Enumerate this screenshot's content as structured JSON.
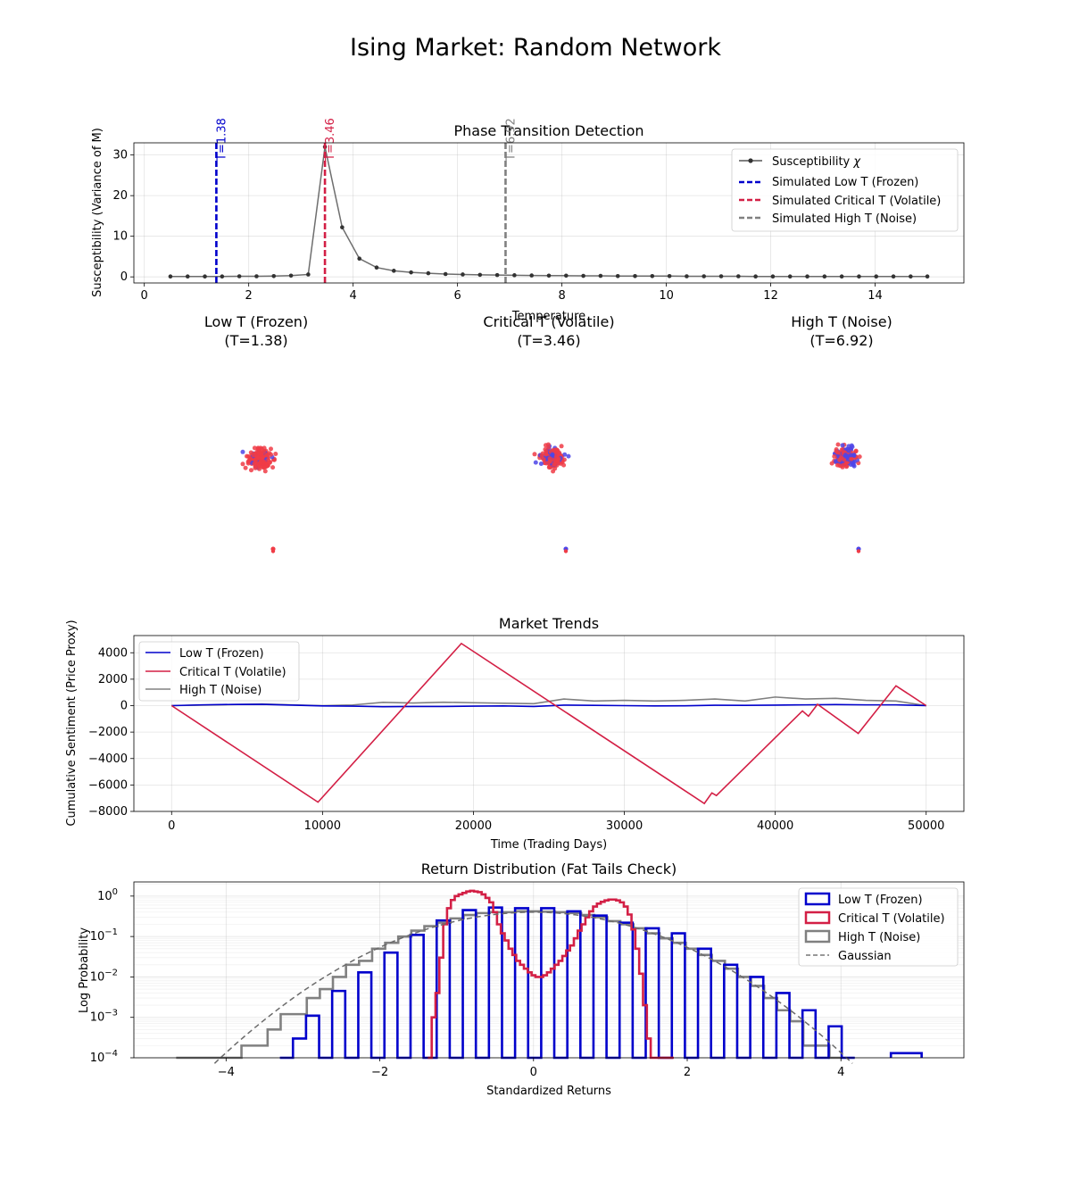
{
  "figure": {
    "title": "Ising Market: Random Network"
  },
  "colors": {
    "low": "#0000cc",
    "critical": "#d31f45",
    "high": "#808080",
    "susc": "#555555",
    "spin_up": "#f03c46",
    "spin_down": "#4d45e8"
  },
  "chart_data": [
    {
      "id": "susceptibility",
      "type": "line",
      "title": "Phase Transition Detection",
      "xlabel": "Temperature",
      "ylabel": "Susceptibility (Variance of M)",
      "xlim": [
        -0.2,
        15.7
      ],
      "ylim": [
        -1.5,
        33.0
      ],
      "xticks": [
        0,
        2,
        4,
        6,
        8,
        10,
        12,
        14
      ],
      "yticks": [
        0,
        10,
        20,
        30
      ],
      "series": [
        {
          "name": "Susceptibility χ",
          "label_main": "Susceptibility ",
          "label_italic": "χ",
          "x": [
            0.5,
            0.83,
            1.16,
            1.49,
            1.82,
            2.15,
            2.48,
            2.81,
            3.14,
            3.46,
            3.79,
            4.12,
            4.45,
            4.78,
            5.11,
            5.44,
            5.77,
            6.1,
            6.43,
            6.76,
            7.09,
            7.42,
            7.75,
            8.08,
            8.41,
            8.74,
            9.07,
            9.4,
            9.73,
            10.06,
            10.39,
            10.72,
            11.05,
            11.38,
            11.71,
            12.04,
            12.37,
            12.7,
            13.03,
            13.36,
            13.69,
            14.02,
            14.35,
            14.68,
            15.0
          ],
          "y": [
            0.1,
            0.1,
            0.1,
            0.1,
            0.15,
            0.15,
            0.2,
            0.3,
            0.6,
            32.0,
            12.2,
            4.5,
            2.3,
            1.5,
            1.1,
            0.9,
            0.7,
            0.6,
            0.5,
            0.45,
            0.4,
            0.35,
            0.3,
            0.3,
            0.25,
            0.25,
            0.2,
            0.2,
            0.2,
            0.2,
            0.15,
            0.15,
            0.15,
            0.15,
            0.1,
            0.1,
            0.1,
            0.1,
            0.1,
            0.1,
            0.1,
            0.1,
            0.1,
            0.1,
            0.1
          ]
        }
      ],
      "vlines": [
        {
          "x": 1.38,
          "label": "T=1.38",
          "legend": "Simulated Low T (Frozen)",
          "color_key": "low"
        },
        {
          "x": 3.46,
          "label": "T=3.46",
          "legend": "Simulated Critical T (Volatile)",
          "color_key": "critical"
        },
        {
          "x": 6.92,
          "label": "T=6.92",
          "legend": "Simulated High T (Noise)",
          "color_key": "high"
        }
      ]
    },
    {
      "id": "networks",
      "type": "scatter",
      "panels": [
        {
          "title_line1": "Low T (Frozen)",
          "title_line2": "(T=1.38)",
          "down_fraction": 0.1
        },
        {
          "title_line1": "Critical T (Volatile)",
          "title_line2": "(T=3.46)",
          "down_fraction": 0.32
        },
        {
          "title_line1": "High T (Noise)",
          "title_line2": "(T=6.92)",
          "down_fraction": 0.48
        }
      ]
    },
    {
      "id": "trends",
      "type": "line",
      "title": "Market Trends",
      "xlabel": "Time (Trading Days)",
      "ylabel": "Cumulative Sentiment (Price Proxy)",
      "xlim": [
        -2500,
        52500
      ],
      "ylim": [
        -8000,
        5300
      ],
      "xticks": [
        0,
        10000,
        20000,
        30000,
        40000,
        50000
      ],
      "yticks": [
        -8000,
        -6000,
        -4000,
        -2000,
        0,
        2000,
        4000
      ],
      "series": [
        {
          "name": "Low T (Frozen)",
          "color_key": "low",
          "x": [
            0,
            2000,
            4000,
            6000,
            8000,
            10000,
            12000,
            14000,
            16000,
            18000,
            20000,
            22000,
            24000,
            26000,
            28000,
            30000,
            32000,
            34000,
            36000,
            38000,
            40000,
            42000,
            44000,
            46000,
            48000,
            50000
          ],
          "y": [
            0,
            60,
            90,
            100,
            40,
            -20,
            -40,
            -80,
            -60,
            -60,
            -40,
            -20,
            -60,
            40,
            20,
            0,
            -20,
            -10,
            30,
            20,
            40,
            60,
            80,
            60,
            60,
            0
          ]
        },
        {
          "name": "Critical T (Volatile)",
          "color_key": "critical",
          "x": [
            0,
            9700,
            19200,
            35300,
            35800,
            36100,
            41800,
            42200,
            42800,
            45500,
            48000,
            50000
          ],
          "y": [
            0,
            -7300,
            4700,
            -7400,
            -6600,
            -6800,
            -400,
            -800,
            100,
            -2100,
            1500,
            0
          ]
        },
        {
          "name": "High T (Noise)",
          "color_key": "high",
          "x": [
            0,
            2000,
            4000,
            6000,
            8000,
            10000,
            12000,
            14000,
            16000,
            18000,
            20000,
            22000,
            24000,
            26000,
            28000,
            30000,
            32000,
            34000,
            36000,
            38000,
            40000,
            42000,
            44000,
            46000,
            48000,
            50000
          ],
          "y": [
            0,
            40,
            80,
            120,
            60,
            0,
            50,
            250,
            200,
            260,
            220,
            180,
            150,
            500,
            350,
            400,
            350,
            400,
            500,
            350,
            650,
            500,
            550,
            400,
            350,
            0
          ]
        }
      ]
    },
    {
      "id": "returns",
      "type": "histogram",
      "title": "Return Distribution (Fat Tails Check)",
      "xlabel": "Standardized Returns",
      "ylabel": "Log Probability",
      "xlim": [
        -5.2,
        5.6
      ],
      "ylog": [
        -4,
        0.35
      ],
      "xticks": [
        -4,
        -2,
        0,
        2,
        4
      ],
      "yticks": [
        -4,
        -3,
        -2,
        -1,
        0
      ],
      "series": [
        {
          "name": "Low T (Frozen)",
          "color_key": "low",
          "edges": [
            -3.3,
            -3.13,
            -2.96,
            -2.79,
            -2.62,
            -2.45,
            -2.28,
            -2.11,
            -1.94,
            -1.77,
            -1.6,
            -1.43,
            -1.26,
            -1.09,
            -0.92,
            -0.75,
            -0.58,
            -0.41,
            -0.24,
            -0.07,
            0.1,
            0.27,
            0.44,
            0.61,
            0.78,
            0.95,
            1.12,
            1.29,
            1.46,
            1.63,
            1.8,
            1.97,
            2.14,
            2.31,
            2.48,
            2.65,
            2.82,
            2.99,
            3.16,
            3.33,
            3.5,
            3.67,
            3.84,
            4.01,
            4.18
          ],
          "values": [
            0.0001,
            0.0003,
            0.0011,
            0.0001,
            0.0045,
            0.0001,
            0.013,
            0.0001,
            0.04,
            0.0001,
            0.11,
            0.0001,
            0.25,
            0.0001,
            0.45,
            0.0001,
            0.52,
            0.0001,
            0.5,
            0.0001,
            0.5,
            0.0001,
            0.42,
            0.0001,
            0.33,
            0.0001,
            0.22,
            0.0001,
            0.16,
            0.0001,
            0.12,
            0.0001,
            0.05,
            0.0001,
            0.02,
            0.0001,
            0.01,
            0.0001,
            0.004,
            0.0001,
            0.0015,
            0.0001,
            0.0006,
            0.0001
          ],
          "tail_edges": [
            4.65,
            5.05
          ],
          "tail_value": 0.00013
        },
        {
          "name": "Critical T (Volatile)",
          "color_key": "critical",
          "x": [
            -1.35,
            -1.3,
            -1.25,
            -1.2,
            -1.15,
            -1.1,
            -1.05,
            -1.0,
            -0.95,
            -0.9,
            -0.85,
            -0.8,
            -0.75,
            -0.7,
            -0.65,
            -0.6,
            -0.55,
            -0.5,
            -0.45,
            -0.4,
            -0.35,
            -0.3,
            -0.25,
            -0.2,
            -0.15,
            -0.1,
            -0.05,
            0,
            0.05,
            0.1,
            0.15,
            0.2,
            0.25,
            0.3,
            0.35,
            0.4,
            0.45,
            0.5,
            0.55,
            0.6,
            0.65,
            0.7,
            0.75,
            0.8,
            0.85,
            0.9,
            0.95,
            1.0,
            1.05,
            1.1,
            1.15,
            1.2,
            1.25,
            1.3,
            1.35,
            1.4,
            1.45,
            1.5,
            1.55,
            1.6,
            1.65,
            1.7,
            1.75,
            1.8
          ],
          "y": [
            0.0001,
            0.001,
            0.004,
            0.03,
            0.2,
            0.5,
            0.8,
            1.0,
            1.1,
            1.2,
            1.3,
            1.35,
            1.3,
            1.25,
            1.1,
            0.9,
            0.7,
            0.4,
            0.2,
            0.12,
            0.08,
            0.05,
            0.035,
            0.025,
            0.02,
            0.016,
            0.013,
            0.011,
            0.01,
            0.01,
            0.011,
            0.013,
            0.016,
            0.02,
            0.025,
            0.033,
            0.045,
            0.06,
            0.09,
            0.14,
            0.2,
            0.3,
            0.42,
            0.55,
            0.65,
            0.72,
            0.78,
            0.82,
            0.82,
            0.78,
            0.7,
            0.55,
            0.35,
            0.15,
            0.05,
            0.012,
            0.002,
            0.0003,
            0.0001,
            0.0001,
            0.0001,
            0.0001,
            0.0001,
            0.0001
          ]
        },
        {
          "name": "High T (Noise)",
          "color_key": "high",
          "edges": [
            -4.65,
            -4.48,
            -4.31,
            -4.14,
            -3.97,
            -3.8,
            -3.63,
            -3.46,
            -3.29,
            -3.12,
            -2.95,
            -2.78,
            -2.61,
            -2.44,
            -2.27,
            -2.1,
            -1.93,
            -1.76,
            -1.59,
            -1.42,
            -1.25,
            -1.08,
            -0.91,
            -0.74,
            -0.57,
            -0.4,
            -0.23,
            -0.06,
            0.11,
            0.28,
            0.45,
            0.62,
            0.79,
            0.96,
            1.13,
            1.3,
            1.47,
            1.64,
            1.81,
            1.98,
            2.15,
            2.32,
            2.49,
            2.66,
            2.83,
            3.0,
            3.17,
            3.34,
            3.51,
            3.68,
            3.85,
            4.02
          ],
          "values": [
            0.0001,
            0.0001,
            0.0001,
            0.0001,
            0.0001,
            0.0002,
            0.0002,
            0.0005,
            0.0012,
            0.0012,
            0.003,
            0.005,
            0.01,
            0.02,
            0.025,
            0.05,
            0.07,
            0.1,
            0.14,
            0.18,
            0.22,
            0.28,
            0.34,
            0.38,
            0.4,
            0.4,
            0.42,
            0.42,
            0.41,
            0.4,
            0.38,
            0.34,
            0.3,
            0.24,
            0.2,
            0.16,
            0.12,
            0.09,
            0.07,
            0.05,
            0.035,
            0.025,
            0.016,
            0.01,
            0.006,
            0.003,
            0.0015,
            0.0008,
            0.0002,
            0.0002,
            0.0001
          ]
        },
        {
          "name": "Gaussian",
          "color_key": "high",
          "dashed": true,
          "curve": "normal_pdf"
        }
      ]
    }
  ]
}
